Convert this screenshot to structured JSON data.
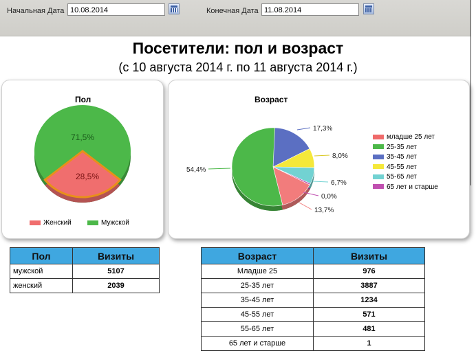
{
  "toolbar": {
    "start_label": "Начальная Дата",
    "start_value": "10.08.2014",
    "end_label": "Конечная Дата",
    "end_value": "11.08.2014"
  },
  "report": {
    "title": "Посетители: пол и возраст",
    "subtitle": "(с 10 августа 2014 г. по 11 августа 2014 г.)"
  },
  "chart_data": [
    {
      "type": "pie",
      "title": "Пол",
      "slices": [
        {
          "name": "Мужской",
          "value": 71.5,
          "label": "71,5%",
          "color": "#4cb849"
        },
        {
          "name": "Женский",
          "value": 28.5,
          "label": "28,5%",
          "color": "#f06e6e"
        }
      ],
      "legend": [
        "Женский",
        "Мужской"
      ],
      "legend_position": "bottom"
    },
    {
      "type": "pie",
      "title": "Возраст",
      "slices": [
        {
          "name": "младше 25 лет",
          "value": 0,
          "label": "",
          "color": "#ef6a6a"
        },
        {
          "name": "25-35 лет",
          "value": 54.4,
          "label": "54,4%",
          "color": "#4cb849"
        },
        {
          "name": "35-45 лет",
          "value": 17.3,
          "label": "17,3%",
          "color": "#5b6fc2"
        },
        {
          "name": "45-55 лет",
          "value": 8.0,
          "label": "8,0%",
          "color": "#f5e83a"
        },
        {
          "name": "55-65 лет",
          "value": 6.7,
          "label": "6,7%",
          "color": "#72d2d2"
        },
        {
          "name": "65 лет и старше",
          "value": 0.0,
          "label": "0,0%",
          "color": "#c050b0"
        },
        {
          "name": "младше 25 лет",
          "value": 13.7,
          "label": "13,7%",
          "color": "#f27c7c"
        }
      ],
      "legend": [
        "младше 25 лет",
        "25-35 лет",
        "35-45 лет",
        "45-55 лет",
        "55-65 лет",
        "65 лет и старше"
      ],
      "legend_position": "right"
    }
  ],
  "gender_legend": [
    {
      "label": "Женский",
      "color": "#f06e6e"
    },
    {
      "label": "Мужской",
      "color": "#4cb849"
    }
  ],
  "age_legend": [
    {
      "label": "младше 25 лет",
      "color": "#ef6a6a"
    },
    {
      "label": "25-35 лет",
      "color": "#4cb849"
    },
    {
      "label": "35-45 лет",
      "color": "#5b6fc2"
    },
    {
      "label": "45-55 лет",
      "color": "#f5e83a"
    },
    {
      "label": "55-65 лет",
      "color": "#72d2d2"
    },
    {
      "label": "65 лет и старше",
      "color": "#c050b0"
    }
  ],
  "gender_table": {
    "headers": [
      "Пол",
      "Визиты"
    ],
    "rows": [
      [
        "мужской",
        "5107"
      ],
      [
        "женский",
        "2039"
      ]
    ]
  },
  "age_table": {
    "headers": [
      "Возраст",
      "Визиты"
    ],
    "rows": [
      [
        "Младше 25",
        "976"
      ],
      [
        "25-35 лет",
        "3887"
      ],
      [
        "35-45 лет",
        "1234"
      ],
      [
        "45-55 лет",
        "571"
      ],
      [
        "55-65 лет",
        "481"
      ],
      [
        "65 лет и старше",
        "1"
      ]
    ]
  }
}
